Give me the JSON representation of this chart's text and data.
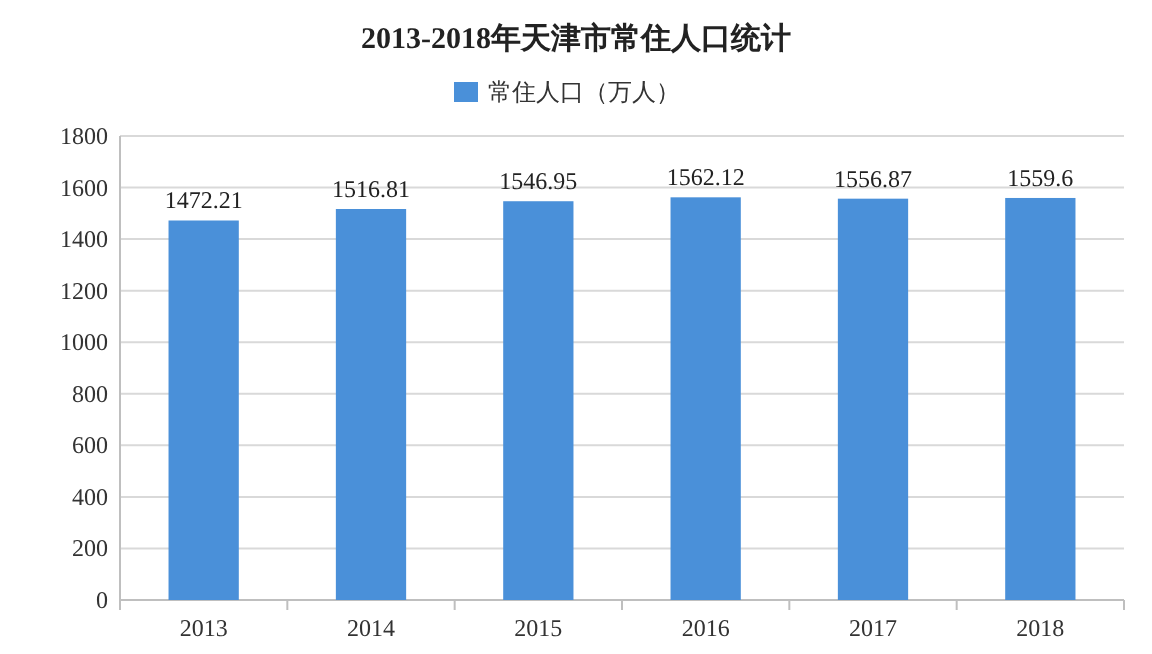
{
  "chart_data": {
    "type": "bar",
    "title": "2013-2018年天津市常住人口统计",
    "categories": [
      "2013",
      "2014",
      "2015",
      "2016",
      "2017",
      "2018"
    ],
    "series": [
      {
        "name": "常住人口（万人）",
        "color": "#4a90d9",
        "values": [
          1472.21,
          1516.81,
          1546.95,
          1562.12,
          1556.87,
          1559.6
        ]
      }
    ],
    "ylim": [
      0,
      1800
    ],
    "yticks": [
      0,
      200,
      400,
      600,
      800,
      1000,
      1200,
      1400,
      1600,
      1800
    ],
    "grid": "y",
    "legend": "top",
    "data_labels": true
  }
}
